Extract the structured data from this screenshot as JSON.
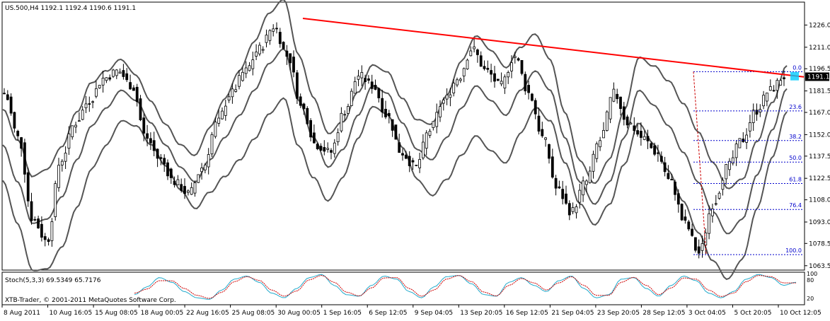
{
  "chart_data": {
    "type": "candlestick",
    "symbol_header": "US.500,H4  1192.1 1192.4 1190.6 1191.1",
    "current_price_label": "1191.1",
    "y_tick_labels": [
      "1226.0",
      "1211.0",
      "1196.5",
      "1181.5",
      "1167.0",
      "1152.0",
      "1137.5",
      "1122.5",
      "1108.0",
      "1093.0",
      "1078.5",
      "1063.5"
    ],
    "y_ticks": [
      1226.0,
      1211.0,
      1196.5,
      1181.5,
      1167.0,
      1152.0,
      1137.5,
      1122.5,
      1108.0,
      1093.0,
      1078.5,
      1063.5
    ],
    "ylim": [
      1061.0,
      1241.0
    ],
    "x_tick_labels": [
      "8 Aug 2011",
      "10 Aug 16:05",
      "15 Aug 08:05",
      "18 Aug 00:05",
      "22 Aug 16:05",
      "25 Aug 08:05",
      "30 Aug 00:05",
      "1 Sep 16:05",
      "6 Sep 12:05",
      "9 Sep 04:05",
      "13 Sep 20:05",
      "16 Sep 12:05",
      "21 Sep 04:05",
      "23 Sep 20:05",
      "28 Sep 12:05",
      "3 Oct 04:05",
      "5 Oct 20:05",
      "10 Oct 12:05"
    ],
    "fibonacci_levels": [
      {
        "label": "0.0",
        "value": 1194.5
      },
      {
        "label": "23.6",
        "value": 1168.0
      },
      {
        "label": "38.2",
        "value": 1148.0
      },
      {
        "label": "50.0",
        "value": 1133.5
      },
      {
        "label": "61.8",
        "value": 1119.0
      },
      {
        "label": "76.4",
        "value": 1101.5
      },
      {
        "label": "100.0",
        "value": 1071.0
      }
    ],
    "trendline": {
      "start": 1230.5,
      "end": 1191.0
    },
    "middle_band": [
      1145,
      1120,
      1092,
      1095,
      1110,
      1135,
      1158,
      1170,
      1182,
      1175,
      1160,
      1145,
      1130,
      1120,
      1135,
      1150,
      1165,
      1182,
      1200,
      1210,
      1175,
      1150,
      1130,
      1142,
      1165,
      1185,
      1180,
      1160,
      1142,
      1135,
      1150,
      1170,
      1185,
      1175,
      1165,
      1182,
      1195,
      1182,
      1150,
      1120,
      1105,
      1120,
      1150,
      1182,
      1172,
      1158,
      1140,
      1120,
      1100,
      1085,
      1095,
      1125,
      1155,
      1183
    ],
    "close_series": [
      1180,
      1150,
      1095,
      1080,
      1135,
      1160,
      1175,
      1190,
      1195,
      1185,
      1150,
      1135,
      1120,
      1112,
      1130,
      1160,
      1180,
      1195,
      1210,
      1225,
      1205,
      1170,
      1145,
      1140,
      1168,
      1192,
      1185,
      1165,
      1140,
      1130,
      1155,
      1175,
      1190,
      1210,
      1195,
      1185,
      1205,
      1180,
      1150,
      1115,
      1100,
      1120,
      1148,
      1180,
      1160,
      1150,
      1140,
      1120,
      1092,
      1072,
      1105,
      1130,
      1148,
      1168,
      1182,
      1191
    ],
    "band_width": 24,
    "indicator": {
      "label": "Stoch(5,3,3) 69.5349 65.7176",
      "level_labels": [
        "100",
        "80",
        "20"
      ],
      "main_line": [
        30,
        55,
        85,
        70,
        40,
        20,
        15,
        45,
        80,
        90,
        70,
        35,
        20,
        50,
        85,
        95,
        60,
        30,
        25,
        60,
        90,
        80,
        40,
        20,
        55,
        88,
        92,
        65,
        30,
        25,
        70,
        85,
        60,
        40,
        75,
        90,
        50,
        20,
        30,
        80,
        85,
        50,
        25,
        60,
        90,
        75,
        35,
        20,
        40,
        80,
        95,
        85,
        60,
        70
      ],
      "signal_line": [
        35,
        48,
        75,
        75,
        50,
        28,
        18,
        38,
        72,
        88,
        76,
        45,
        25,
        42,
        78,
        92,
        70,
        38,
        26,
        52,
        84,
        85,
        50,
        25,
        45,
        80,
        92,
        72,
        38,
        26,
        60,
        82,
        68,
        45,
        68,
        88,
        60,
        28,
        28,
        70,
        86,
        60,
        30,
        52,
        84,
        80,
        45,
        24,
        35,
        72,
        92,
        88,
        68,
        68
      ]
    },
    "footer_text": "XTB-Trader, © 2001-2011 MetaQuotes Software Corp.",
    "colors": {
      "trendline": "#ff0000",
      "bands": "#555555",
      "candles": "#000000",
      "fibo": "#0000cc",
      "fibo_vertical": "#cc0000",
      "price_box": "#000000",
      "highlight": "#00ccff",
      "stoch_main": "#22aacc",
      "stoch_signal": "#cc0000"
    }
  }
}
